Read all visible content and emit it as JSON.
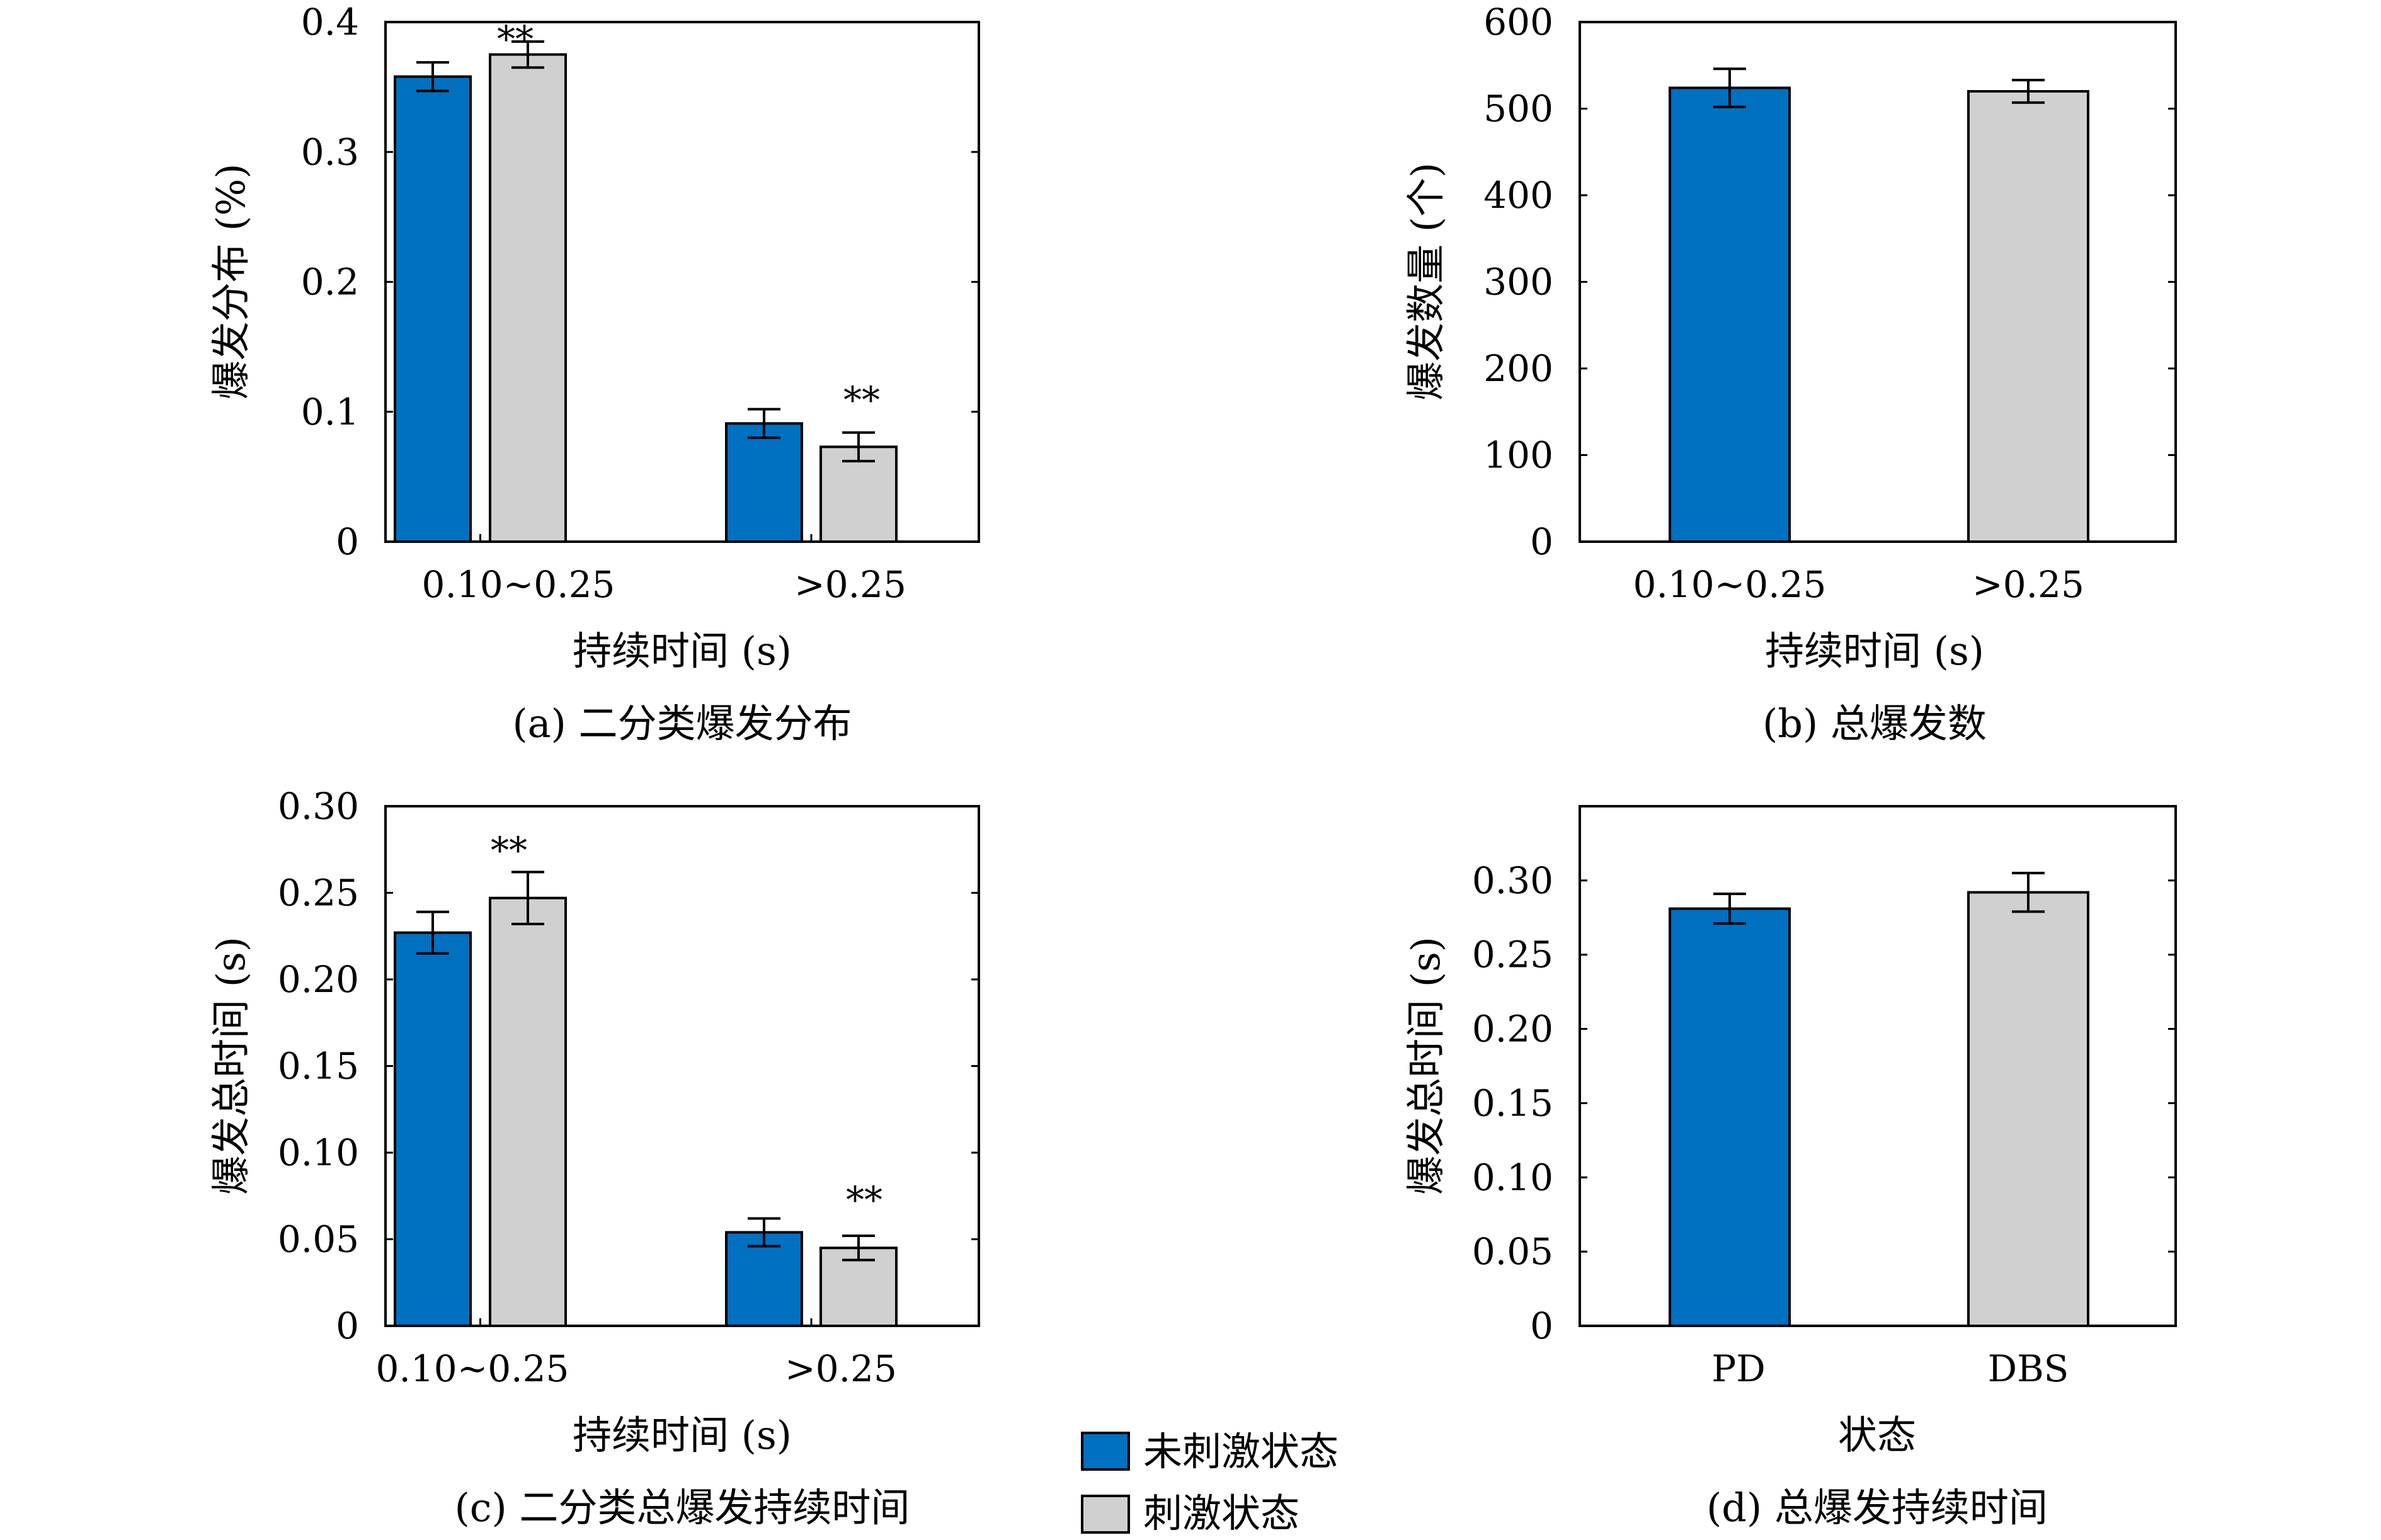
{
  "colors": {
    "unstimulated": "#0070C0",
    "stimulated": "#D0D0D0",
    "frame": "#000000"
  },
  "chart_data": [
    {
      "type": "bar",
      "caption": "(a) 二分类爆发分布",
      "xlabel": "持续时间 (s)",
      "ylabel": "爆发分布 (%)",
      "ylim": [
        0,
        0.4
      ],
      "yticks": [
        0,
        0.1,
        0.2,
        0.3,
        0.4
      ],
      "ytick_labels": [
        "0",
        "0.1",
        "0.2",
        "0.3",
        "0.4"
      ],
      "categories": [
        "0.10~0.25",
        ">0.25"
      ],
      "series": [
        {
          "name": "未刺激状态",
          "values": [
            0.358,
            0.091
          ],
          "errors": [
            0.011,
            0.011
          ]
        },
        {
          "name": "刺激状态",
          "values": [
            0.375,
            0.073
          ],
          "errors": [
            0.01,
            0.011
          ]
        }
      ],
      "annotations": [
        "**",
        "**"
      ],
      "grid": false
    },
    {
      "type": "bar",
      "caption": "(b) 总爆发数",
      "xlabel": "持续时间 (s)",
      "ylabel": "爆发数量 (个)",
      "ylim": [
        0,
        600
      ],
      "yticks": [
        0,
        100,
        200,
        300,
        400,
        500,
        600
      ],
      "ytick_labels": [
        "0",
        "100",
        "200",
        "300",
        "400",
        "500",
        "600"
      ],
      "categories": [
        "0.10~0.25",
        ">0.25"
      ],
      "values": [
        524,
        520
      ],
      "errors": [
        22,
        13
      ],
      "colors": [
        "#0070C0",
        "#D0D0D0"
      ],
      "grid": false
    },
    {
      "type": "bar",
      "caption": "(c) 二分类总爆发持续时间",
      "xlabel": "持续时间 (s)",
      "ylabel": "爆发总时间 (s)",
      "ylim": [
        0,
        0.3
      ],
      "yticks": [
        0,
        0.05,
        0.1,
        0.15,
        0.2,
        0.25,
        0.3
      ],
      "ytick_labels": [
        "0",
        "0.05",
        "0.10",
        "0.15",
        "0.20",
        "0.25",
        "0.30"
      ],
      "categories": [
        "0.10~0.25",
        ">0.25"
      ],
      "series": [
        {
          "name": "未刺激状态",
          "values": [
            0.227,
            0.054
          ],
          "errors": [
            0.012,
            0.008
          ]
        },
        {
          "name": "刺激状态",
          "values": [
            0.247,
            0.045
          ],
          "errors": [
            0.015,
            0.007
          ]
        }
      ],
      "annotations": [
        "**",
        "**"
      ],
      "grid": false
    },
    {
      "type": "bar",
      "caption": "(d) 总爆发持续时间",
      "xlabel": "状态",
      "ylabel": "爆发总时间 (s)",
      "ylim": [
        0,
        0.35
      ],
      "yticks": [
        0,
        0.05,
        0.1,
        0.15,
        0.2,
        0.25,
        0.3
      ],
      "ytick_labels": [
        "0",
        "0.05",
        "0.10",
        "0.15",
        "0.20",
        "0.25",
        "0.30"
      ],
      "categories": [
        "PD",
        "DBS"
      ],
      "values": [
        0.281,
        0.292
      ],
      "errors": [
        0.01,
        0.013
      ],
      "colors": [
        "#0070C0",
        "#D0D0D0"
      ],
      "grid": false
    }
  ],
  "legend": {
    "placement": "bottom-center",
    "entries": [
      {
        "label": "未刺激状态",
        "color": "#0070C0"
      },
      {
        "label": "刺激状态",
        "color": "#D0D0D0"
      }
    ]
  }
}
